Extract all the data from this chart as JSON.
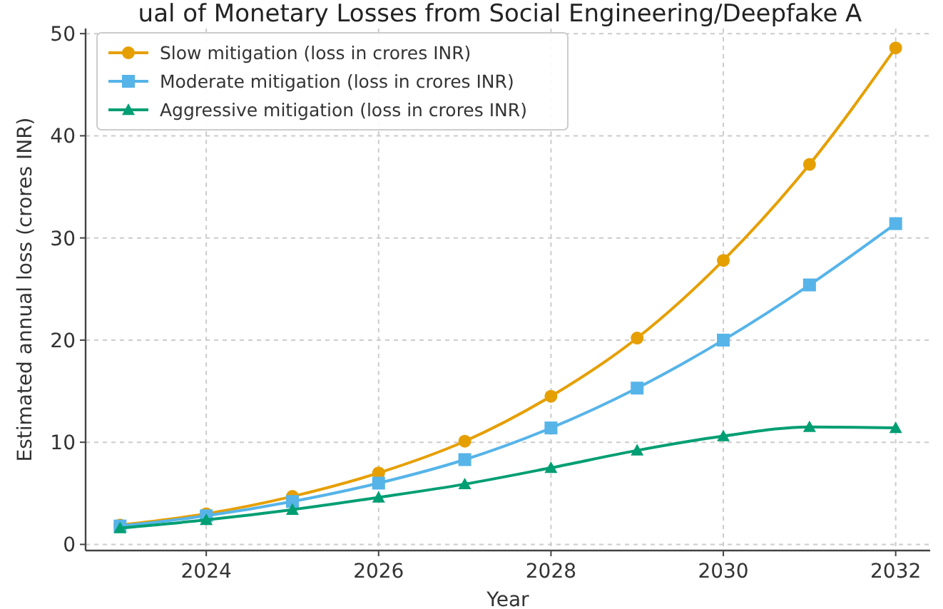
{
  "chart_data": {
    "type": "line",
    "title": "ual of Monetary Losses from Social Engineering/Deepfake A",
    "xlabel": "Year",
    "ylabel": "Estimated annual loss (crores INR)",
    "x": [
      2023,
      2024,
      2025,
      2026,
      2027,
      2028,
      2029,
      2030,
      2031,
      2032
    ],
    "series": [
      {
        "name": "Slow mitigation (loss in crores INR)",
        "color": "#e69f00",
        "marker": "circle",
        "values": [
          1.9,
          3.0,
          4.7,
          7.0,
          10.1,
          14.5,
          20.2,
          27.8,
          37.2,
          48.6
        ]
      },
      {
        "name": "Moderate mitigation (loss in crores INR)",
        "color": "#56b4e9",
        "marker": "square",
        "values": [
          1.8,
          2.8,
          4.2,
          6.0,
          8.3,
          11.4,
          15.3,
          20.0,
          25.4,
          31.4
        ]
      },
      {
        "name": "Aggressive mitigation (loss in crores INR)",
        "color": "#009e73",
        "marker": "triangle",
        "values": [
          1.6,
          2.4,
          3.4,
          4.6,
          5.9,
          7.5,
          9.2,
          10.6,
          11.5,
          11.4
        ]
      }
    ],
    "xlim": [
      2022.6,
      2032.4
    ],
    "xticks": [
      2024,
      2026,
      2028,
      2030,
      2032
    ],
    "ylim": [
      -0.6,
      50.5
    ],
    "yticks": [
      0,
      10,
      20,
      30,
      40,
      50
    ],
    "grid": true,
    "legend": "top left",
    "line_style": "solid"
  }
}
